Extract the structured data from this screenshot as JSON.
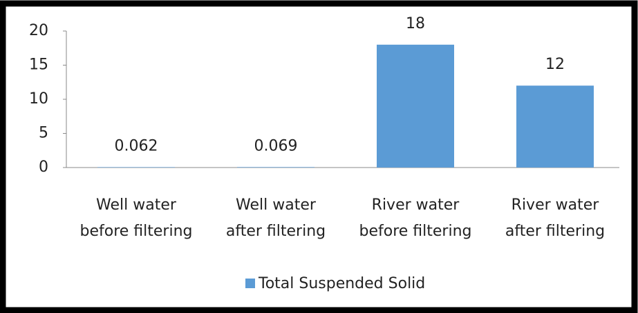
{
  "chart_data": {
    "type": "bar",
    "categories": [
      "Well water before filtering",
      "Well water after filtering",
      "River water before filtering",
      "River water after filtering"
    ],
    "series": [
      {
        "name": "Total Suspended Solid",
        "color": "#5b9bd5",
        "values": [
          0.062,
          0.069,
          18,
          12
        ]
      }
    ],
    "ylim": [
      0,
      20
    ],
    "yticks": [
      0,
      5,
      10,
      15,
      20
    ],
    "grid": false,
    "legend": "bottom"
  }
}
